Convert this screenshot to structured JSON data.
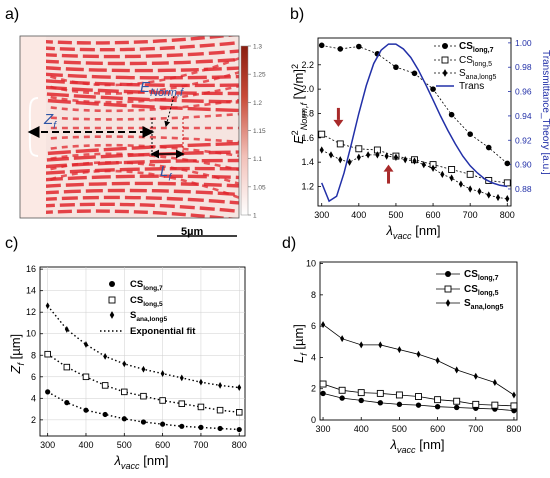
{
  "chart_data": [
    {
      "panel": "a)",
      "type": "heatmap",
      "annotations": [
        "Z_f",
        "E_Norm,f",
        "L_f"
      ],
      "colorbar_ticks": [
        "1.3",
        "1.25",
        "1.2",
        "1.15",
        "1.1",
        "1.05",
        "1"
      ],
      "scalebar_label": "5µm",
      "colors": {
        "red": "#e0262c",
        "cool": "#ffffff",
        "line": "#2e55a5"
      }
    },
    {
      "panel": "b)",
      "type": "line",
      "xlabel": "λvacc [nm]",
      "ylabel": "E²Norm,f [V/m]²",
      "y2label": "Transmittance_Theory [a.u.]",
      "xlim": [
        290,
        810
      ],
      "ylim": [
        1.04,
        2.42
      ],
      "y2lim": [
        0.866,
        1.004
      ],
      "xticks": [
        300,
        400,
        500,
        600,
        700,
        800
      ],
      "yticks": [
        1.2,
        1.4,
        1.6,
        1.8,
        2.0,
        2.2
      ],
      "y2ticks": [
        0.88,
        0.9,
        0.92,
        0.94,
        0.96,
        0.98,
        1.0
      ],
      "series": [
        {
          "name": "CSlong,7",
          "marker": "circle",
          "axis": "left",
          "x": [
            300,
            350,
            400,
            450,
            500,
            550,
            600,
            650,
            700,
            750,
            800
          ],
          "values": [
            2.36,
            2.33,
            2.35,
            2.29,
            2.18,
            2.13,
            2.0,
            1.79,
            1.63,
            1.52,
            1.39
          ]
        },
        {
          "name": "CSlong,5",
          "marker": "square",
          "axis": "left",
          "x": [
            300,
            350,
            400,
            450,
            500,
            550,
            600,
            650,
            700,
            750,
            800
          ],
          "values": [
            1.63,
            1.55,
            1.51,
            1.5,
            1.45,
            1.42,
            1.38,
            1.34,
            1.3,
            1.25,
            1.23
          ]
        },
        {
          "name": "Sana,long5",
          "marker": "diamond",
          "axis": "left",
          "x": [
            300,
            325,
            350,
            375,
            400,
            425,
            450,
            475,
            500,
            525,
            550,
            575,
            600,
            625,
            650,
            675,
            700,
            725,
            750,
            775,
            800
          ],
          "values": [
            1.5,
            1.46,
            1.42,
            1.4,
            1.44,
            1.46,
            1.46,
            1.45,
            1.44,
            1.42,
            1.41,
            1.38,
            1.35,
            1.3,
            1.27,
            1.22,
            1.18,
            1.16,
            1.13,
            1.11,
            1.1
          ]
        },
        {
          "name": "Trans",
          "marker": "none",
          "axis": "right",
          "x": [
            300,
            320,
            340,
            360,
            380,
            400,
            420,
            440,
            460,
            480,
            500,
            520,
            540,
            560,
            580,
            600,
            620,
            640,
            660,
            680,
            700,
            720,
            740,
            760,
            780,
            800
          ],
          "values": [
            0.885,
            0.87,
            0.874,
            0.893,
            0.917,
            0.942,
            0.965,
            0.983,
            0.994,
            0.999,
            0.999,
            0.995,
            0.988,
            0.978,
            0.966,
            0.953,
            0.94,
            0.928,
            0.917,
            0.907,
            0.899,
            0.893,
            0.888,
            0.885,
            0.883,
            0.882
          ]
        }
      ],
      "arrows": [
        {
          "x": 345,
          "y": 1.78,
          "direction": "down"
        },
        {
          "x": 480,
          "y": 1.29,
          "direction": "up"
        }
      ]
    },
    {
      "panel": "c)",
      "type": "scatter",
      "xlabel": "λvacc [nm]",
      "ylabel": "Z_f [µm]",
      "xlim": [
        280,
        815
      ],
      "ylim": [
        0.5,
        16.2
      ],
      "xticks": [
        300,
        400,
        500,
        600,
        700,
        800
      ],
      "yticks": [
        2,
        4,
        6,
        8,
        10,
        12,
        14,
        16
      ],
      "series": [
        {
          "name": "CSlong,7",
          "marker": "circle",
          "x": [
            300,
            350,
            400,
            450,
            500,
            550,
            600,
            650,
            700,
            750,
            800
          ],
          "values": [
            4.6,
            3.6,
            2.9,
            2.5,
            2.1,
            1.8,
            1.6,
            1.4,
            1.3,
            1.2,
            1.1
          ]
        },
        {
          "name": "CSlong,5",
          "marker": "square",
          "x": [
            300,
            350,
            400,
            450,
            500,
            550,
            600,
            650,
            700,
            750,
            800
          ],
          "values": [
            8.1,
            6.9,
            6.0,
            5.2,
            4.6,
            4.2,
            3.8,
            3.5,
            3.2,
            2.9,
            2.7
          ]
        },
        {
          "name": "Sana,long5",
          "marker": "diamond",
          "x": [
            300,
            350,
            400,
            450,
            500,
            550,
            600,
            650,
            700,
            750,
            800
          ],
          "values": [
            12.6,
            10.4,
            9.0,
            7.9,
            7.2,
            6.7,
            6.3,
            5.9,
            5.5,
            5.2,
            5.0
          ]
        },
        {
          "name": "Exponential fit",
          "marker": "dotted-line",
          "curves": 3
        }
      ]
    },
    {
      "panel": "d)",
      "type": "line",
      "xlabel": "λvacc [nm]",
      "ylabel": "L_f [µm]",
      "xlim": [
        292,
        808
      ],
      "ylim": [
        0,
        10.1
      ],
      "xticks": [
        300,
        400,
        500,
        600,
        700,
        800
      ],
      "yticks": [
        0,
        2,
        4,
        6,
        8,
        10
      ],
      "series": [
        {
          "name": "CSlong,7",
          "marker": "circle",
          "x": [
            300,
            350,
            400,
            450,
            500,
            550,
            600,
            650,
            700,
            750,
            800
          ],
          "values": [
            1.7,
            1.4,
            1.25,
            1.1,
            1.0,
            0.95,
            0.85,
            0.8,
            0.75,
            0.7,
            0.6
          ]
        },
        {
          "name": "CSlong,5",
          "marker": "square",
          "x": [
            300,
            350,
            400,
            450,
            500,
            550,
            600,
            650,
            700,
            750,
            800
          ],
          "values": [
            2.3,
            1.9,
            1.75,
            1.7,
            1.6,
            1.5,
            1.3,
            1.2,
            1.0,
            0.95,
            0.9
          ]
        },
        {
          "name": "Sana,long5",
          "marker": "diamond",
          "x": [
            300,
            350,
            400,
            450,
            500,
            550,
            600,
            650,
            700,
            750,
            800
          ],
          "values": [
            6.1,
            5.2,
            4.8,
            4.8,
            4.5,
            4.2,
            3.8,
            3.2,
            2.8,
            2.4,
            1.6
          ]
        }
      ]
    }
  ]
}
